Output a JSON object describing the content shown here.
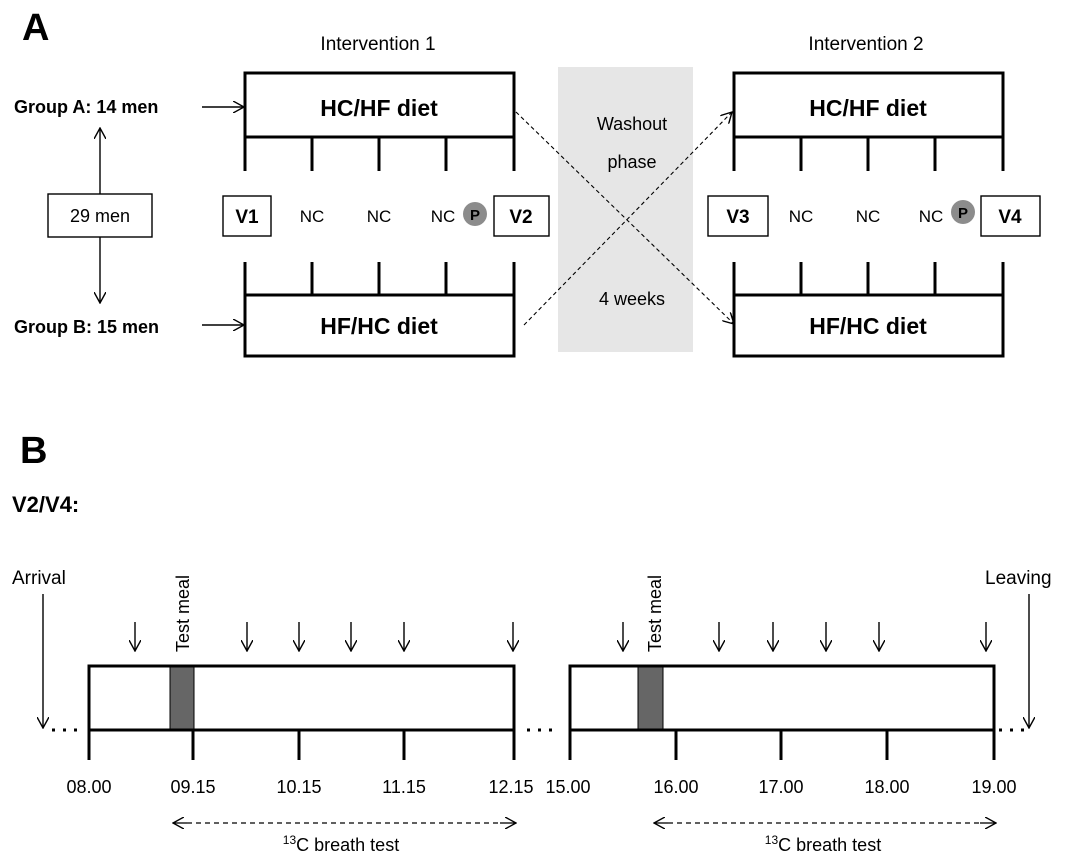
{
  "panel_a": {
    "letter": "A",
    "intervention_1": "Intervention 1",
    "intervention_2": "Intervention 2",
    "group_a": "Group A: 14 men",
    "group_b": "Group B: 15 men",
    "total": "29 men",
    "top_diet": "HC/HF diet",
    "bottom_diet": "HF/HC diet",
    "visits": [
      "V1",
      "V2",
      "V3",
      "V4"
    ],
    "nc": "NC",
    "p": "P",
    "washout_line1": "Washout",
    "washout_line2": "phase",
    "washout_duration": "4 weeks",
    "washout_fill": "#e6e6e6",
    "p_fill": "#8c8c8c"
  },
  "panel_b": {
    "letter": "B",
    "subtitle": "V2/V4:",
    "arrival": "Arrival",
    "leaving": "Leaving",
    "test_meal": "Test meal",
    "breath_test_sup": "13",
    "breath_test": "C breath test",
    "meal_fill": "#666666",
    "ticks_left": [
      "08.00",
      "09.15",
      "10.15",
      "11.15",
      "12.15"
    ],
    "ticks_right": [
      "15.00",
      "16.00",
      "17.00",
      "18.00",
      "19.00"
    ]
  }
}
